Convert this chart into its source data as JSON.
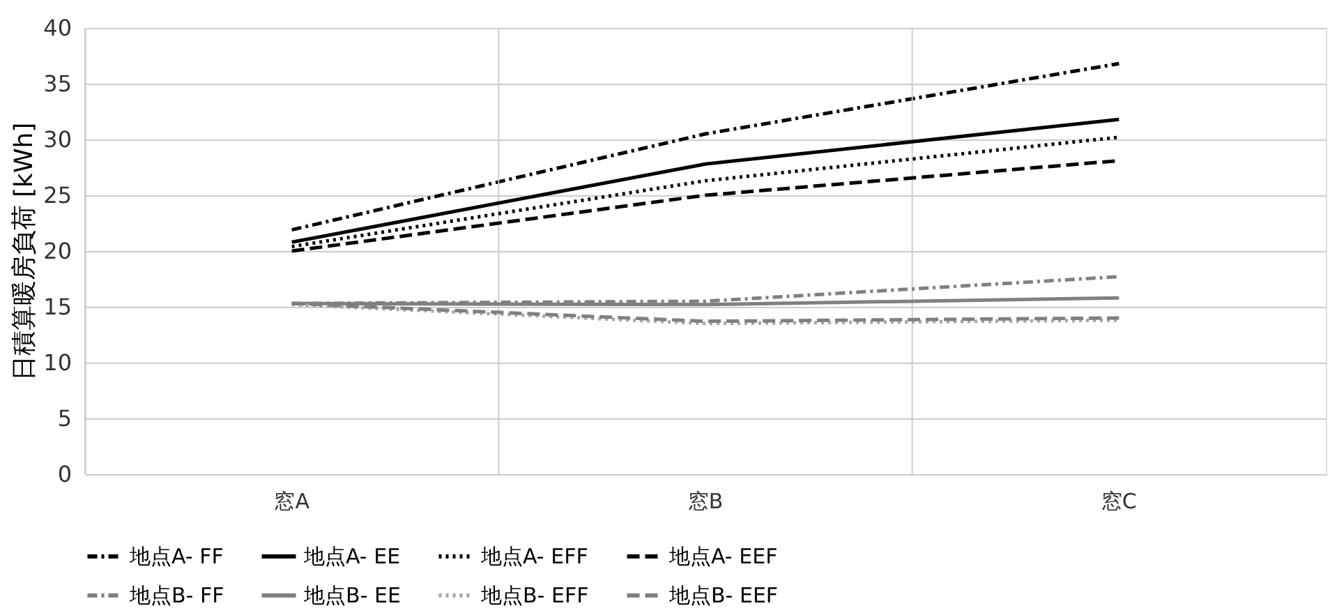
{
  "chart_data": {
    "type": "line",
    "ylabel": "日積算暖房負荷 [kWh]",
    "categories": [
      "窓A",
      "窓B",
      "窓C"
    ],
    "ylim": [
      0,
      40
    ],
    "yticks": [
      0,
      5,
      10,
      15,
      20,
      25,
      30,
      35,
      40
    ],
    "grid": true,
    "legend": "bottom",
    "marker": "none",
    "series": [
      {
        "name": "地点A- FF",
        "color": "#000000",
        "line_style": "dashdot",
        "values": [
          21.9,
          30.5,
          36.8
        ]
      },
      {
        "name": "地点A- EE",
        "color": "#000000",
        "line_style": "solid",
        "values": [
          20.8,
          27.8,
          31.8
        ]
      },
      {
        "name": "地点A- EFF",
        "color": "#000000",
        "line_style": "dotted",
        "values": [
          20.4,
          26.3,
          30.2
        ]
      },
      {
        "name": "地点A- EEF",
        "color": "#000000",
        "line_style": "dashed",
        "values": [
          20.0,
          25.0,
          28.1
        ]
      },
      {
        "name": "地点B- FF",
        "color": "#808080",
        "line_style": "dashdot",
        "values": [
          15.3,
          15.5,
          17.7
        ]
      },
      {
        "name": "地点B- EE",
        "color": "#808080",
        "line_style": "solid",
        "values": [
          15.3,
          15.2,
          15.8
        ]
      },
      {
        "name": "地点B- EFF",
        "color": "#a6a6a6",
        "line_style": "dotted",
        "values": [
          15.2,
          13.5,
          13.8
        ]
      },
      {
        "name": "地点B- EEF",
        "color": "#808080",
        "line_style": "dashed",
        "values": [
          15.3,
          13.7,
          14.0
        ]
      }
    ]
  }
}
